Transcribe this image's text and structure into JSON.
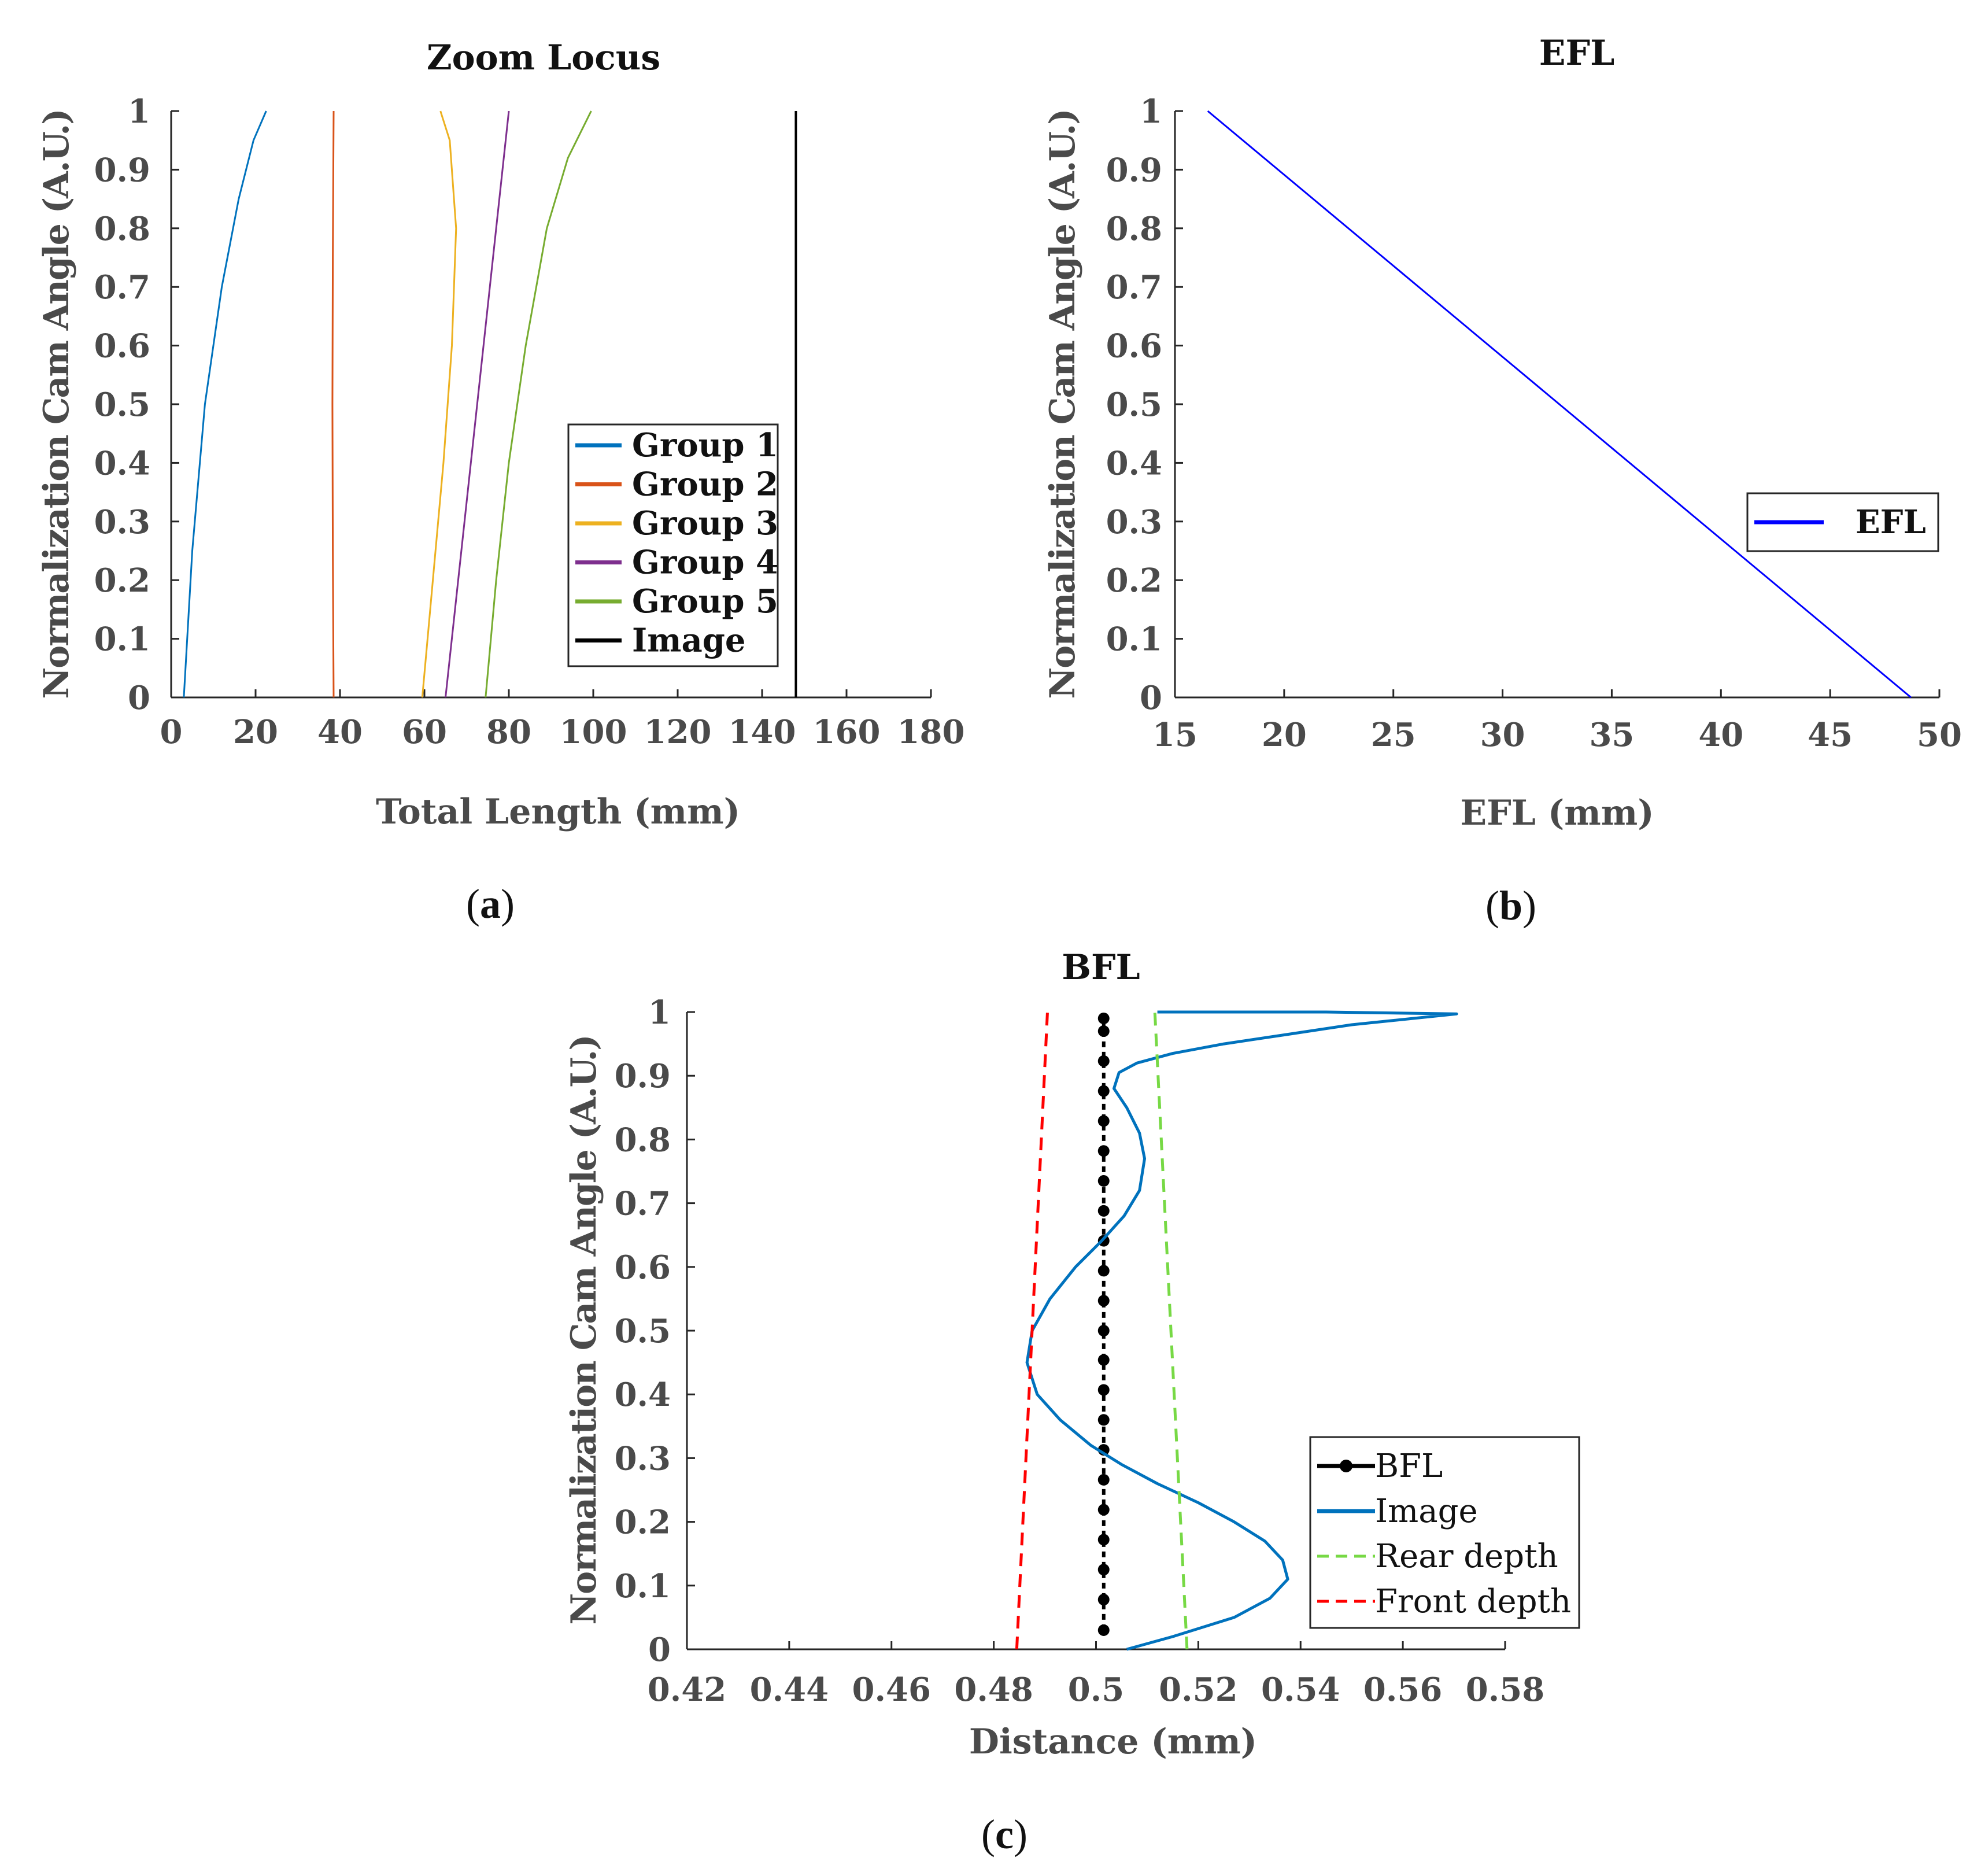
{
  "chart_data": [
    {
      "id": "a",
      "type": "line",
      "title": "Zoom Locus",
      "xlabel": "Total Length (mm)",
      "ylabel": "Normalization Cam Angle (A.U.)",
      "xlim": [
        0,
        180
      ],
      "ylim": [
        0,
        1
      ],
      "xticks": [
        "0",
        "20",
        "40",
        "60",
        "80",
        "100",
        "120",
        "140",
        "160",
        "180"
      ],
      "yticks": [
        "0",
        "0.1",
        "0.2",
        "0.3",
        "0.4",
        "0.5",
        "0.6",
        "0.7",
        "0.8",
        "0.9",
        "1"
      ],
      "legend": "lower-right",
      "caption": "(a)",
      "caption_letter": "a",
      "series": [
        {
          "name": "Group 1",
          "color": "#0072bd",
          "style": "solid",
          "x": [
            3,
            5,
            8,
            12,
            16,
            19.5,
            22.5
          ],
          "y": [
            0,
            0.25,
            0.5,
            0.7,
            0.85,
            0.95,
            1.0
          ]
        },
        {
          "name": "Group 2",
          "color": "#d95319",
          "style": "solid",
          "x": [
            38.5,
            38.3,
            38.2,
            38.3,
            38.5
          ],
          "y": [
            0,
            0.25,
            0.5,
            0.75,
            1.0
          ]
        },
        {
          "name": "Group 3",
          "color": "#edb120",
          "style": "solid",
          "x": [
            59.5,
            62,
            64.5,
            66.5,
            67.5,
            66,
            63.8
          ],
          "y": [
            0,
            0.2,
            0.4,
            0.6,
            0.8,
            0.95,
            1.0
          ]
        },
        {
          "name": "Group 4",
          "color": "#7e2f8e",
          "style": "solid",
          "x": [
            65,
            68,
            71,
            74,
            77,
            80
          ],
          "y": [
            0,
            0.2,
            0.4,
            0.6,
            0.8,
            1.0
          ]
        },
        {
          "name": "Group 5",
          "color": "#77ac30",
          "style": "solid",
          "x": [
            74.5,
            77,
            80,
            84,
            89,
            94,
            99.5
          ],
          "y": [
            0,
            0.2,
            0.4,
            0.6,
            0.8,
            0.92,
            1.0
          ]
        },
        {
          "name": "Image",
          "color": "#000000",
          "style": "solid",
          "x": [
            148,
            148,
            148
          ],
          "y": [
            0,
            0.5,
            1.0
          ]
        }
      ]
    },
    {
      "id": "b",
      "type": "line",
      "title": "EFL",
      "xlabel": "EFL (mm)",
      "ylabel": "Normalization Cam Angle (A.U.)",
      "xlim": [
        15,
        50
      ],
      "ylim": [
        0,
        1
      ],
      "xticks": [
        "15",
        "20",
        "25",
        "30",
        "35",
        "40",
        "45",
        "50"
      ],
      "yticks": [
        "0",
        "0.1",
        "0.2",
        "0.3",
        "0.4",
        "0.5",
        "0.6",
        "0.7",
        "0.8",
        "0.9",
        "1"
      ],
      "legend": "right",
      "caption": "(b)",
      "caption_letter": "b",
      "series": [
        {
          "name": "EFL",
          "color": "#0000ff",
          "style": "solid",
          "x": [
            16.5,
            48.7
          ],
          "y": [
            1.0,
            0.0
          ]
        }
      ]
    },
    {
      "id": "c",
      "type": "line",
      "title": "BFL",
      "xlabel": "Distance (mm)",
      "ylabel": "Normalization Cam Angle (A.U.)",
      "xlim": [
        0.42,
        0.58
      ],
      "ylim": [
        0,
        1
      ],
      "xticks": [
        "0.42",
        "0.44",
        "0.46",
        "0.48",
        "0.5",
        "0.52",
        "0.54",
        "0.56",
        "0.58"
      ],
      "yticks": [
        "0",
        "0.1",
        "0.2",
        "0.3",
        "0.4",
        "0.5",
        "0.6",
        "0.7",
        "0.8",
        "0.9",
        "1"
      ],
      "legend": "lower-right",
      "caption": "(c)",
      "caption_letter": "c",
      "series": [
        {
          "name": "BFL",
          "color": "#000000",
          "style": "dotted-marker",
          "x": [
            0.5015,
            0.5015,
            0.5015,
            0.5015,
            0.5015,
            0.5015,
            0.5015,
            0.5015,
            0.5015,
            0.5015,
            0.5015,
            0.5015,
            0.5015,
            0.5015,
            0.5015,
            0.5015,
            0.5015,
            0.5015,
            0.5015,
            0.5015,
            0.5015,
            0.5015
          ],
          "y": [
            0.03,
            0.078,
            0.125,
            0.172,
            0.219,
            0.266,
            0.313,
            0.36,
            0.407,
            0.454,
            0.5,
            0.547,
            0.594,
            0.641,
            0.688,
            0.735,
            0.782,
            0.829,
            0.876,
            0.923,
            0.97,
            0.99
          ]
        },
        {
          "name": "Image",
          "color": "#0072bd",
          "style": "solid",
          "x": [
            0.506,
            0.515,
            0.527,
            0.534,
            0.5375,
            0.5365,
            0.533,
            0.527,
            0.52,
            0.512,
            0.505,
            0.499,
            0.493,
            0.4885,
            0.4865,
            0.4875,
            0.491,
            0.496,
            0.501,
            0.5055,
            0.5085,
            0.5095,
            0.5085,
            0.506,
            0.5035,
            0.5045,
            0.508,
            0.515,
            0.525,
            0.5375,
            0.55,
            0.5705,
            0.545,
            0.53,
            0.512
          ],
          "y": [
            0.0,
            0.02,
            0.05,
            0.08,
            0.11,
            0.14,
            0.17,
            0.2,
            0.23,
            0.26,
            0.29,
            0.32,
            0.36,
            0.4,
            0.45,
            0.5,
            0.55,
            0.6,
            0.64,
            0.68,
            0.72,
            0.77,
            0.81,
            0.85,
            0.88,
            0.905,
            0.92,
            0.935,
            0.95,
            0.965,
            0.98,
            0.997,
            1.0,
            1.0,
            1.0
          ]
        },
        {
          "name": "Rear depth",
          "color": "#77d945",
          "style": "dashed",
          "x": [
            0.5178,
            0.5115
          ],
          "y": [
            0.0,
            1.0
          ]
        },
        {
          "name": "Front depth",
          "color": "#ff0000",
          "style": "dashed",
          "x": [
            0.4845,
            0.4905
          ],
          "y": [
            0.0,
            1.0
          ]
        }
      ]
    }
  ]
}
